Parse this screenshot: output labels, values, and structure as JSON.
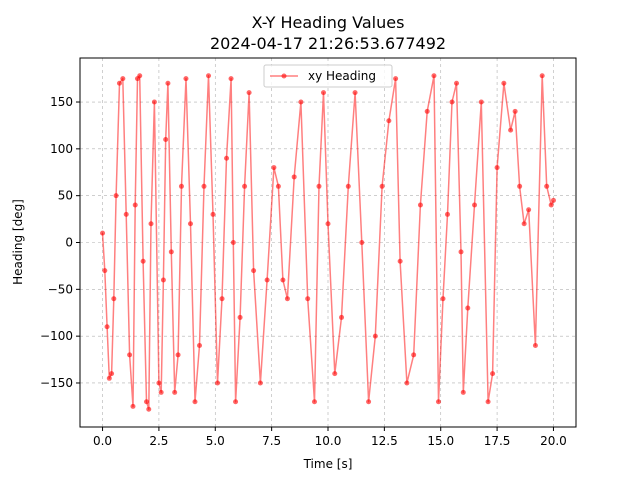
{
  "chart_data": {
    "type": "line",
    "title": "X-Y Heading Values",
    "subtitle": "2024-04-17 21:26:53.677492",
    "xlabel": "Time [s]",
    "ylabel": "Heading [deg]",
    "xlim": [
      -1.0,
      21.0
    ],
    "ylim": [
      -197,
      197
    ],
    "x_ticks": [
      0.0,
      2.5,
      5.0,
      7.5,
      10.0,
      12.5,
      15.0,
      17.5,
      20.0
    ],
    "x_tick_labels": [
      "0.0",
      "2.5",
      "5.0",
      "7.5",
      "10.0",
      "12.5",
      "15.0",
      "17.5",
      "20.0"
    ],
    "y_ticks": [
      -150,
      -100,
      -50,
      0,
      50,
      100,
      150
    ],
    "y_tick_labels": [
      "−150",
      "−100",
      "−50",
      "0",
      "50",
      "100",
      "150"
    ],
    "grid": true,
    "legend_position": "top-center",
    "series": [
      {
        "name": "xy Heading",
        "color": "#ff0000",
        "marker": "circle",
        "x": [
          0.0,
          0.1,
          0.2,
          0.3,
          0.4,
          0.5,
          0.6,
          0.75,
          0.9,
          1.05,
          1.2,
          1.35,
          1.45,
          1.55,
          1.65,
          1.8,
          1.95,
          2.05,
          2.15,
          2.3,
          2.5,
          2.6,
          2.7,
          2.8,
          2.9,
          3.05,
          3.2,
          3.35,
          3.5,
          3.7,
          3.9,
          4.1,
          4.3,
          4.5,
          4.7,
          4.9,
          5.1,
          5.3,
          5.5,
          5.7,
          5.8,
          5.9,
          6.1,
          6.3,
          6.5,
          6.7,
          7.0,
          7.3,
          7.6,
          7.8,
          8.0,
          8.2,
          8.5,
          8.8,
          9.1,
          9.4,
          9.6,
          9.8,
          10.0,
          10.3,
          10.6,
          10.9,
          11.2,
          11.5,
          11.8,
          12.1,
          12.4,
          12.7,
          13.0,
          13.2,
          13.5,
          13.8,
          14.1,
          14.4,
          14.7,
          14.9,
          15.1,
          15.3,
          15.5,
          15.7,
          15.9,
          16.0,
          16.2,
          16.5,
          16.8,
          17.1,
          17.3,
          17.5,
          17.8,
          18.1,
          18.3,
          18.5,
          18.7,
          18.9,
          19.2,
          19.5,
          19.7,
          19.9,
          20.0
        ],
        "y": [
          10,
          -30,
          -90,
          -145,
          -140,
          -60,
          50,
          170,
          175,
          30,
          -120,
          -175,
          40,
          175,
          178,
          -20,
          -170,
          -178,
          20,
          150,
          -150,
          -160,
          -40,
          110,
          170,
          -10,
          -160,
          -120,
          60,
          175,
          20,
          -170,
          -110,
          60,
          178,
          30,
          -150,
          -60,
          90,
          175,
          0,
          -170,
          -80,
          60,
          160,
          -30,
          -150,
          -40,
          80,
          60,
          -40,
          -60,
          70,
          150,
          -60,
          -170,
          60,
          160,
          20,
          -140,
          -80,
          60,
          160,
          0,
          -170,
          -100,
          60,
          130,
          175,
          -20,
          -150,
          -120,
          40,
          140,
          178,
          -170,
          -60,
          30,
          150,
          170,
          -10,
          -160,
          -70,
          40,
          150,
          -170,
          -140,
          80,
          170,
          120,
          140,
          60,
          20,
          35,
          -110,
          178,
          60,
          40,
          45
        ]
      }
    ]
  }
}
